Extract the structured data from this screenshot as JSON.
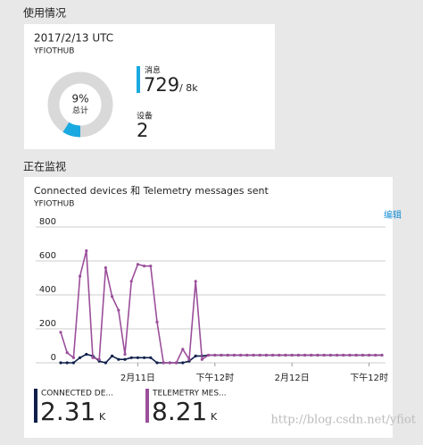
{
  "usage": {
    "heading": "使用情况",
    "date": "2017/2/13 UTC",
    "hub": "YFIOTHUB",
    "donut": {
      "type": "pie",
      "values": [
        9
      ],
      "value_labels": [
        "9%"
      ],
      "center_label": "总计",
      "color": "#1aa9e0"
    },
    "messages": {
      "label": "消息",
      "value": 729,
      "limit": "/ 8k"
    },
    "devices": {
      "label": "设备",
      "value": 2
    }
  },
  "monitor": {
    "heading": "正在监视",
    "edit": "编辑",
    "chart_data": {
      "type": "line",
      "title": "Connected devices 和 Telemetry messages sent",
      "subtitle": "YFIOTHUB",
      "x": [
        -12,
        -11,
        -10,
        -9,
        -8,
        -7,
        -6,
        -5,
        -4,
        -3,
        -2,
        -1,
        0,
        1,
        2,
        3,
        4,
        5,
        6,
        7,
        8,
        9,
        10,
        11,
        12,
        13,
        14,
        15,
        16,
        17,
        18,
        19,
        20,
        21,
        22,
        23,
        24,
        25,
        26,
        27,
        28,
        29,
        30,
        31,
        32,
        33,
        34,
        35,
        36,
        37,
        38
      ],
      "xlim": [
        -12,
        38
      ],
      "xticks": [
        {
          "value": 0,
          "label": "2月11日"
        },
        {
          "value": 12,
          "label": "下午12时"
        },
        {
          "value": 24,
          "label": "2月12日"
        },
        {
          "value": 36,
          "label": "下午12时"
        }
      ],
      "ylim": [
        0,
        800
      ],
      "yticks": [
        0,
        200,
        400,
        600,
        800
      ],
      "grid": true,
      "series": [
        {
          "name": "CONNECTED DE...",
          "color": "#0f1f4a",
          "total": 2.31,
          "unit": "K",
          "values": [
            0,
            0,
            0,
            30,
            50,
            40,
            10,
            0,
            40,
            20,
            20,
            30,
            30,
            30,
            30,
            0,
            0,
            0,
            0,
            0,
            10,
            40,
            40,
            45,
            45,
            45,
            45,
            45,
            45,
            45,
            45,
            45,
            45,
            45,
            45,
            45,
            45,
            45,
            45,
            45,
            45,
            45,
            45,
            45,
            45,
            45,
            45,
            45,
            45,
            45,
            45
          ]
        },
        {
          "name": "TELEMETRY MES...",
          "color": "#9b4f9b",
          "total": 8.21,
          "unit": "K",
          "values": [
            180,
            60,
            30,
            510,
            660,
            30,
            20,
            560,
            390,
            310,
            50,
            480,
            580,
            570,
            570,
            240,
            0,
            0,
            0,
            80,
            20,
            480,
            20,
            45,
            45,
            45,
            45,
            45,
            45,
            45,
            45,
            45,
            45,
            45,
            45,
            45,
            45,
            45,
            45,
            45,
            45,
            45,
            45,
            45,
            45,
            45,
            45,
            45,
            45,
            45,
            45
          ]
        }
      ]
    }
  },
  "watermark": "http://blog.csdn.net/yfiot"
}
